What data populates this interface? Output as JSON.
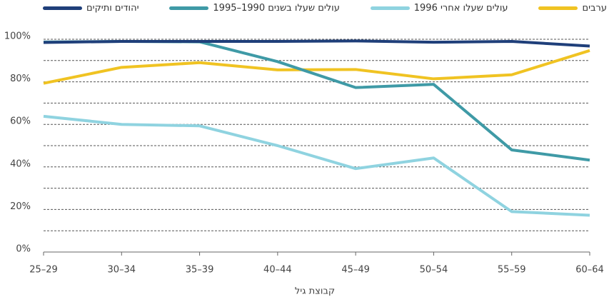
{
  "chart_data": {
    "type": "line",
    "x_label": "קבוצת גיל",
    "categories": [
      "25–29",
      "30–34",
      "35–39",
      "40–44",
      "45–49",
      "50–54",
      "55–59",
      "60–64"
    ],
    "series": [
      {
        "name": "ערבים",
        "color": "#f0c322",
        "values": [
          79.3,
          86.8,
          89,
          85.6,
          85.8,
          81.4,
          83.3,
          94.7
        ]
      },
      {
        "name": "עולים שעלו אחרי 1996",
        "color": "#8fd3e0",
        "values": [
          63.8,
          60,
          59.3,
          50,
          39.2,
          44.2,
          19,
          17.3
        ]
      },
      {
        "name": "עולים שעלו בשנים 1990–1995",
        "color": "#3f9aa6",
        "values": [
          98.7,
          99,
          98.8,
          89.5,
          77.3,
          78.8,
          48,
          43.2
        ]
      },
      {
        "name": "יהודים ותיקים",
        "color": "#1f3f7a",
        "values": [
          98.5,
          99,
          99,
          99,
          99.2,
          98.6,
          99,
          96.8
        ]
      }
    ],
    "ylim": [
      0,
      100
    ],
    "yticks": [
      {
        "value": 0,
        "label": "0%"
      },
      {
        "value": 20,
        "label": "20%"
      },
      {
        "value": 40,
        "label": "40%"
      },
      {
        "value": 60,
        "label": "60%"
      },
      {
        "value": 80,
        "label": "80%"
      },
      {
        "value": 100,
        "label": "100%"
      }
    ],
    "grid_lines": [
      10,
      20,
      30,
      40,
      50,
      60,
      70,
      80,
      90,
      100
    ],
    "legend": "top"
  }
}
